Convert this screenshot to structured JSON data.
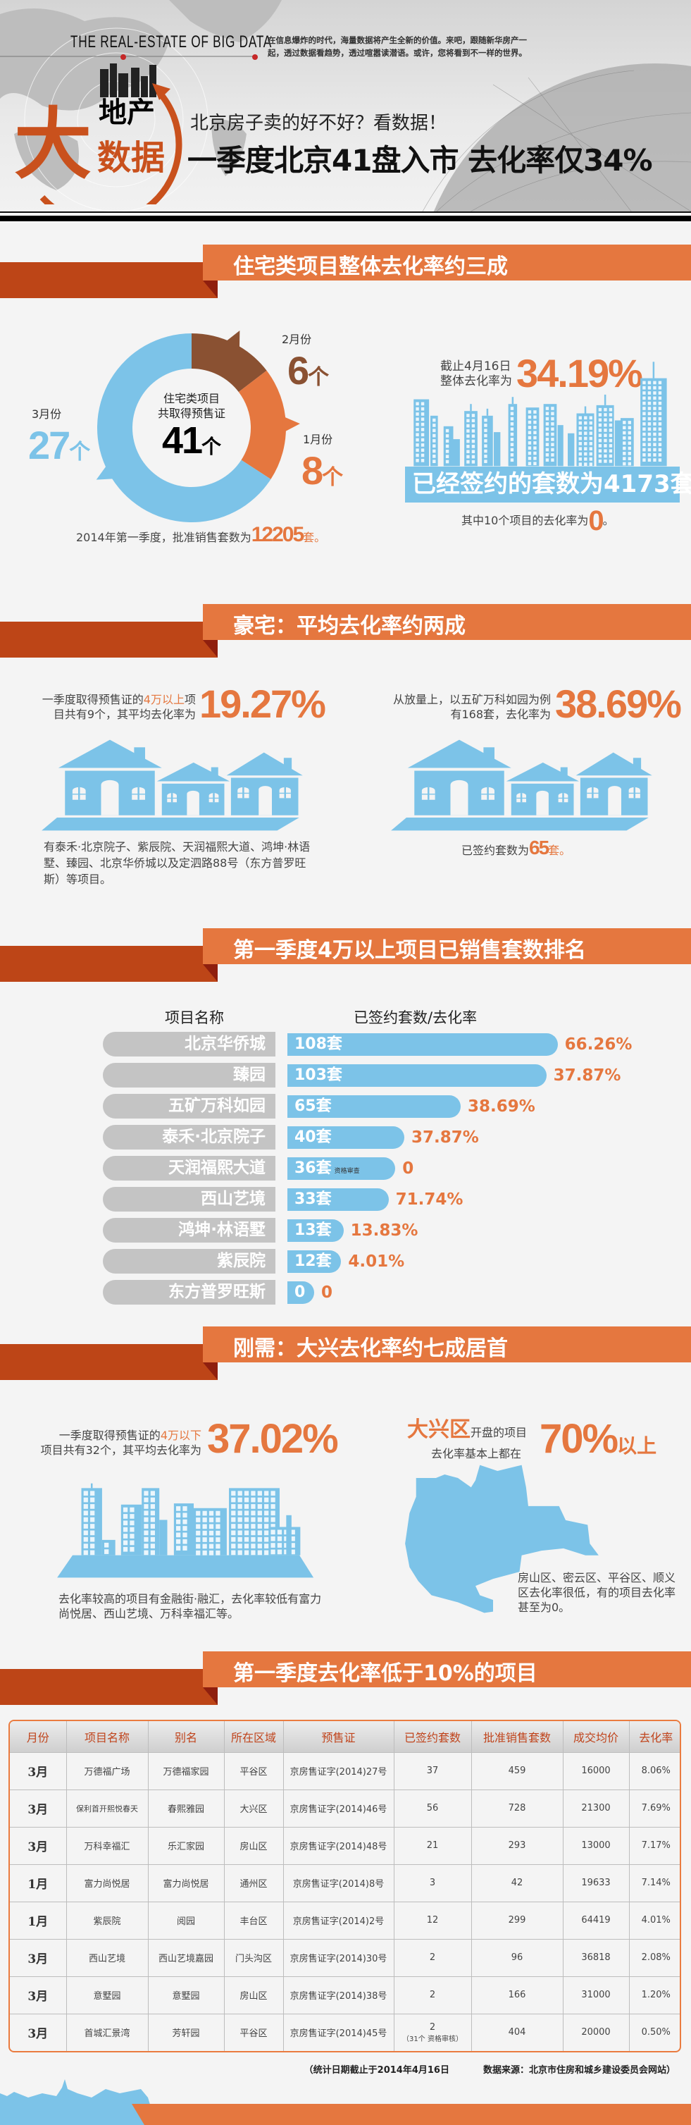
{
  "colors": {
    "orange": "#e5773f",
    "dark_red": "#bd4517",
    "blue": "#7cc3e8",
    "brown": "#8a5132",
    "gray": "#c4c4c4",
    "background": "#f4f4f4"
  },
  "header": {
    "tagline_en": "THE  REAL-ESTATE OF BIG DATA",
    "intro_lines": [
      "在信息爆炸的时代，海量数据将产生全新的价值。来吧，跟随新华房产一",
      "起，透过数据看趋势，透过喧嚣读潜语。或许，您将看到不一样的世界。"
    ],
    "logo": {
      "top": "地产",
      "big": "大",
      "rest": "数据"
    },
    "subtitle": "北京房子卖的好不好？看数据！",
    "title": "一季度北京41盘入市 去化率仅34%"
  },
  "section1": {
    "banner": "住宅类项目整体去化率约三成",
    "donut_center": {
      "line1": "住宅类项目",
      "line2": "共取得预售证",
      "value": "41",
      "unit": "个"
    },
    "approved": {
      "prefix": "2014年第一季度，批准销售套数为",
      "value": "12205",
      "suffix": "套。"
    },
    "rate": {
      "line1": "截止4月16日",
      "line2": "整体去化率为",
      "value": "34.19%"
    },
    "signed_bar": "已经签约的套数为4173套",
    "zero_note": {
      "prefix": "其中10个项目的去化率为",
      "value": "0",
      "suffix": "。"
    }
  },
  "section2": {
    "banner": "豪宅：平均去化率约两成",
    "left": {
      "l1_pre": "一季度取得预售证的",
      "l1_hl": "4万以上",
      "l1_post": "项",
      "l2": "目共有9个，其平均去化率为",
      "value": "19.27%",
      "projects": "有泰禾·北京院子、紫辰院、天润福熙大道、鸿坤·林语墅、臻园、北京华侨城以及定泗路88号（东方普罗旺斯）等项目。"
    },
    "right": {
      "l1": "从放量上，以五矿万科如园为例",
      "l2": "有168套，去化率为",
      "value": "38.69%",
      "signed_pre": "已签约套数为",
      "signed_value": "65",
      "signed_suffix": "套。"
    }
  },
  "section3": {
    "banner": "第一季度4万以上项目已销售套数排名"
  },
  "section4": {
    "banner": "刚需：大兴去化率约七成居首",
    "left": {
      "l1_pre": "一季度取得预售证的",
      "l1_hl": "4万以下",
      "l2": "项目共有32个，其平均去化率为",
      "value": "37.02%",
      "note": "去化率较高的项目有金融街·融汇，去化率较低有富力尚悦居、西山艺境、万科幸福汇等。"
    },
    "right": {
      "hl": "大兴区",
      "l1": "开盘的项目",
      "l2": "去化率基本上都在",
      "value": "70%",
      "value_suffix": "以上",
      "note": "房山区、密云区、平谷区、顺义区去化率很低，有的项目去化率甚至为0。"
    }
  },
  "section5": {
    "banner": "第一季度去化率低于10%的项目",
    "table": {
      "headers": [
        "月份",
        "项目名称",
        "别名",
        "所在区域",
        "预售证",
        "已签约套数",
        "批准销售套数",
        "成交均价",
        "去化率"
      ],
      "rows": [
        {
          "cells": [
            "3月",
            "万德福广场",
            "万德福家园",
            "平谷区",
            "京房售证字(2014)27号",
            "37",
            "459",
            "16000",
            "8.06%"
          ]
        },
        {
          "cells": [
            "3月",
            "保利首开熙悦春天",
            "春熙雅园",
            "大兴区",
            "京房售证字(2014)46号",
            "56",
            "728",
            "21300",
            "7.69%"
          ]
        },
        {
          "cells": [
            "3月",
            "万科幸福汇",
            "乐汇家园",
            "房山区",
            "京房售证字(2014)48号",
            "21",
            "293",
            "13000",
            "7.17%"
          ]
        },
        {
          "cells": [
            "1月",
            "富力尚悦居",
            "富力尚悦居",
            "通州区",
            "京房售证字(2014)8号",
            "3",
            "42",
            "19633",
            "7.14%"
          ]
        },
        {
          "cells": [
            "1月",
            "紫辰院",
            "阅园",
            "丰台区",
            "京房售证字(2014)2号",
            "12",
            "299",
            "64419",
            "4.01%"
          ]
        },
        {
          "cells": [
            "3月",
            "西山艺境",
            "西山艺境嘉园",
            "门头沟区",
            "京房售证字(2014)30号",
            "2",
            "96",
            "36818",
            "2.08%"
          ]
        },
        {
          "cells": [
            "3月",
            "意墅园",
            "意墅园",
            "房山区",
            "京房售证字(2014)38号",
            "2",
            "166",
            "31000",
            "1.20%"
          ]
        },
        {
          "cells": [
            "3月",
            "首城汇景湾",
            "芳轩园",
            "平谷区",
            "京房售证字(2014)45号",
            "2",
            "404",
            "20000",
            "0.50%"
          ],
          "note": "（31个 资格审核）"
        }
      ]
    },
    "footer_date": "（统计日期截止于2014年4月16日",
    "footer_source": "数据来源：北京市住房和城乡建设委员会网站）"
  },
  "chart_data": [
    {
      "type": "pie",
      "variant": "donut",
      "categories": [
        "2月份",
        "1月份",
        "3月份"
      ],
      "values": [
        6,
        8,
        27
      ],
      "unit": "个",
      "colors": [
        "#8a5132",
        "#e5773f",
        "#7cc3e8"
      ],
      "total": 41
    },
    {
      "type": "bar",
      "orientation": "horizontal",
      "xlabel": "已签约套数/去化率",
      "ylabel": "项目名称",
      "categories": [
        "北京华侨城",
        "臻园",
        "五矿万科如园",
        "泰禾·北京院子",
        "天润福熙大道",
        "西山艺境",
        "鸿坤·林语墅",
        "紫辰院",
        "东方普罗旺斯"
      ],
      "series": [
        {
          "name": "已签约套数",
          "values": [
            108,
            103,
            65,
            40,
            36,
            33,
            13,
            12,
            0
          ],
          "unit": "套"
        },
        {
          "name": "去化率",
          "values": [
            66.26,
            37.87,
            38.69,
            37.87,
            0,
            71.74,
            13.83,
            4.01,
            0
          ],
          "labels": [
            "66.26%",
            "37.87%",
            "38.69%",
            "37.87%",
            "0",
            "71.74%",
            "13.83%",
            "4.01%",
            "0"
          ]
        }
      ],
      "annotations": [
        {
          "category": "天润福熙大道",
          "text": "资格审查"
        }
      ]
    }
  ]
}
